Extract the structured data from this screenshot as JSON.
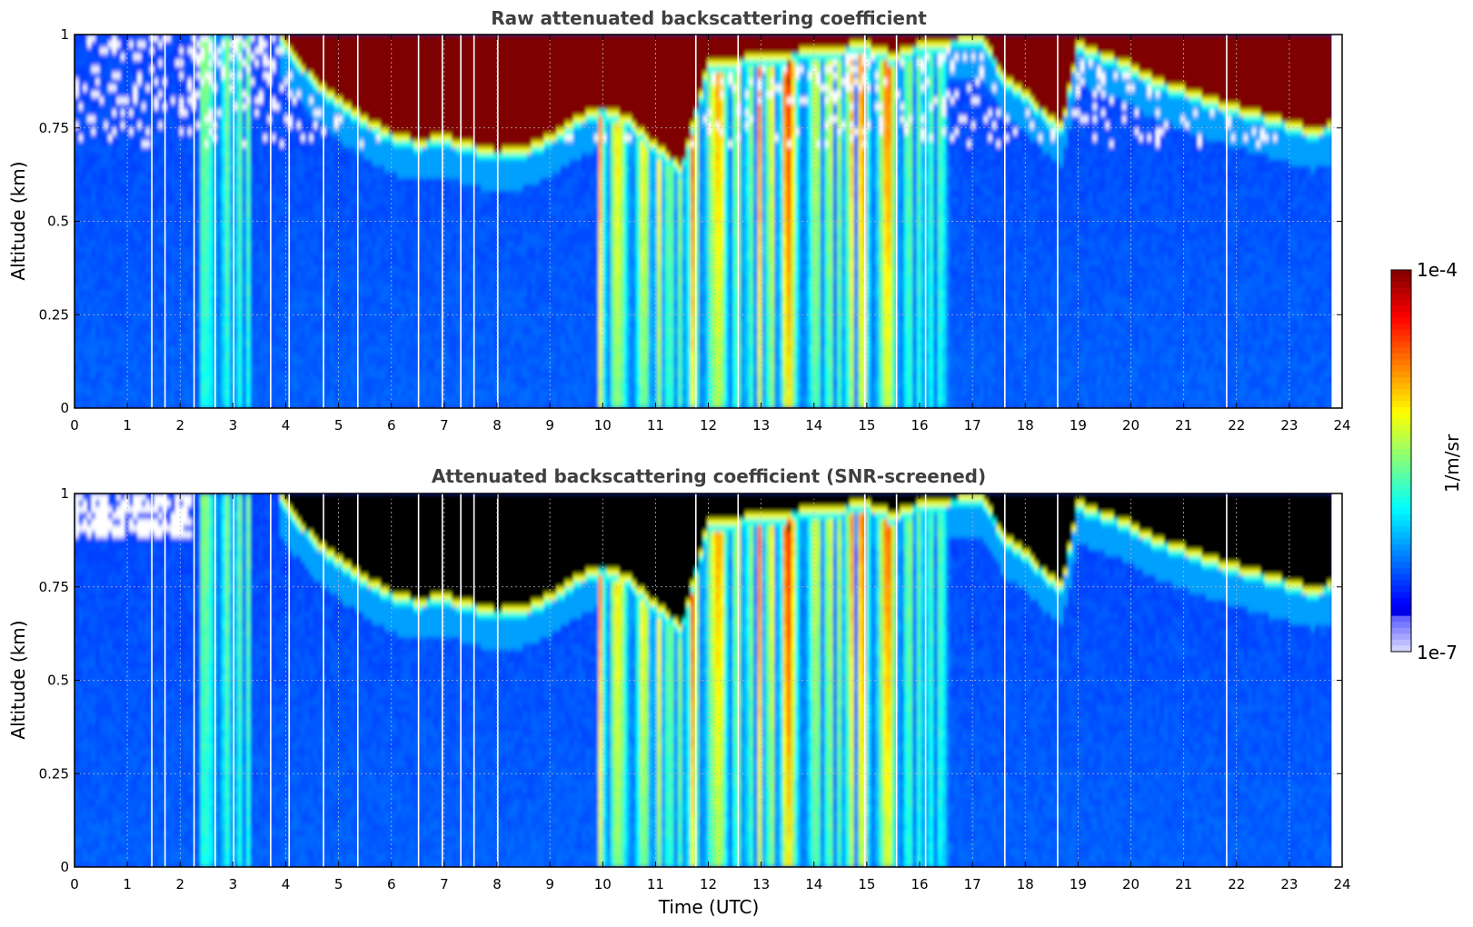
{
  "chart_data": [
    {
      "type": "heatmap",
      "title": "Raw attenuated backscattering coefficient",
      "ylabel": "Altitude (km)",
      "xlabel": "",
      "xlim": [
        0,
        24
      ],
      "ylim": [
        0,
        1
      ],
      "xticks": [
        "0",
        "1",
        "2",
        "3",
        "4",
        "5",
        "6",
        "7",
        "8",
        "9",
        "10",
        "11",
        "12",
        "13",
        "14",
        "15",
        "16",
        "17",
        "18",
        "19",
        "20",
        "21",
        "22",
        "23",
        "24"
      ],
      "yticks": [
        "0",
        "0.25",
        "0.5",
        "0.75",
        "1"
      ],
      "ytick_values": [
        0,
        0.25,
        0.5,
        0.75,
        1
      ],
      "grid": true,
      "colormap": "jet",
      "screened": false,
      "cloud_base_km": [
        [
          3.9,
          0.97
        ],
        [
          4.5,
          0.86
        ],
        [
          5.0,
          0.8
        ],
        [
          5.5,
          0.75
        ],
        [
          6.0,
          0.71
        ],
        [
          6.5,
          0.69
        ],
        [
          7.0,
          0.7
        ],
        [
          7.5,
          0.68
        ],
        [
          8.0,
          0.66
        ],
        [
          8.5,
          0.67
        ],
        [
          9.0,
          0.7
        ],
        [
          9.5,
          0.75
        ],
        [
          10.0,
          0.78
        ],
        [
          10.5,
          0.75
        ],
        [
          11.0,
          0.68
        ],
        [
          11.5,
          0.62
        ],
        [
          12.0,
          0.9
        ],
        [
          15.0,
          0.95
        ],
        [
          15.5,
          0.92
        ],
        [
          16.0,
          0.95
        ],
        [
          17.2,
          0.97
        ],
        [
          17.6,
          0.86
        ],
        [
          18.0,
          0.82
        ],
        [
          18.4,
          0.76
        ],
        [
          18.7,
          0.73
        ],
        [
          19.0,
          0.95
        ],
        [
          19.9,
          0.9
        ],
        [
          20.5,
          0.85
        ],
        [
          21.0,
          0.83
        ],
        [
          21.5,
          0.8
        ],
        [
          22.0,
          0.78
        ],
        [
          22.5,
          0.76
        ],
        [
          23.0,
          0.74
        ],
        [
          23.4,
          0.72
        ],
        [
          23.8,
          0.73
        ]
      ]
    },
    {
      "type": "heatmap",
      "title": "Attenuated backscattering coefficient (SNR-screened)",
      "ylabel": "Altitude (km)",
      "xlabel": "Time (UTC)",
      "xlim": [
        0,
        24
      ],
      "ylim": [
        0,
        1
      ],
      "xticks": [
        "0",
        "1",
        "2",
        "3",
        "4",
        "5",
        "6",
        "7",
        "8",
        "9",
        "10",
        "11",
        "12",
        "13",
        "14",
        "15",
        "16",
        "17",
        "18",
        "19",
        "20",
        "21",
        "22",
        "23",
        "24"
      ],
      "yticks": [
        "0",
        "0.25",
        "0.5",
        "0.75",
        "1"
      ],
      "ytick_values": [
        0,
        0.25,
        0.5,
        0.75,
        1
      ],
      "grid": true,
      "colormap": "jet",
      "screened": true,
      "saturated_color": "#000000"
    }
  ],
  "colorbar": {
    "max_label": "1e-4",
    "min_label": "1e-7",
    "units_label": "1/m/sr",
    "range": [
      1e-07,
      0.0001
    ],
    "scale": "log"
  },
  "colors": {
    "background_blue": "#0b2cff",
    "saturated_red": "#7f0000",
    "grid": "#bbbbbb"
  }
}
